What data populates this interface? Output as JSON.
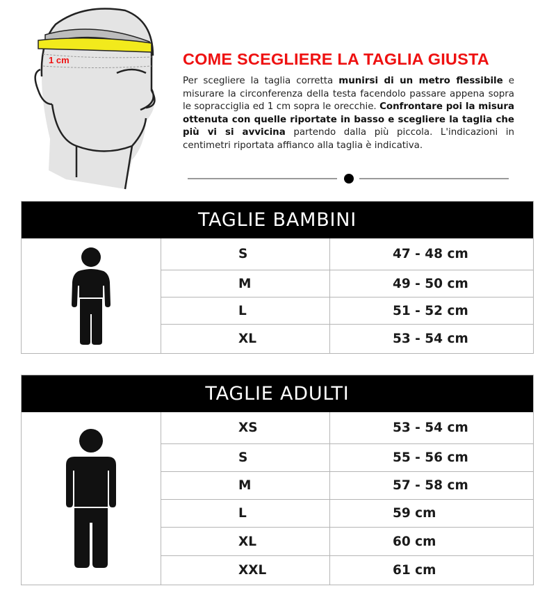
{
  "illustration": {
    "label": "1 cm",
    "tape_color": "#f2ea1c"
  },
  "title": "COME SCEGLIERE LA TAGLIA GIUSTA",
  "title_color": "#ee1111",
  "paragraph": [
    {
      "text": "Per scegliere la taglia corretta ",
      "bold": false
    },
    {
      "text": "munirsi di un metro flessibile",
      "bold": true
    },
    {
      "text": " e misurare la circonferenza della testa facendolo passare appena sopra le sopracciglia ed 1 cm sopra le orecchie. ",
      "bold": false
    },
    {
      "text": "Confrontare poi la misura ottenuta con quelle riportate in basso e scegliere la taglia che più vi si avvicina",
      "bold": true
    },
    {
      "text": " partendo dalla più piccola. L'indicazioni in centimetri riportata affianco alla taglia è indicativa.",
      "bold": false
    }
  ],
  "kids_table": {
    "title": "TAGLIE BAMBINI",
    "icon": "child-icon",
    "rows": [
      {
        "size": "S",
        "measure": "47 - 48 cm"
      },
      {
        "size": "M",
        "measure": "49 - 50 cm"
      },
      {
        "size": "L",
        "measure": "51 - 52 cm"
      },
      {
        "size": "XL",
        "measure": "53 - 54 cm"
      }
    ]
  },
  "adults_table": {
    "title": "TAGLIE ADULTI",
    "icon": "adult-icon",
    "rows": [
      {
        "size": "XS",
        "measure": "53 - 54 cm"
      },
      {
        "size": "S",
        "measure": "55 - 56 cm"
      },
      {
        "size": "M",
        "measure": "57 - 58 cm"
      },
      {
        "size": "L",
        "measure": "59 cm"
      },
      {
        "size": "XL",
        "measure": "60 cm"
      },
      {
        "size": "XXL",
        "measure": "61 cm"
      }
    ]
  }
}
